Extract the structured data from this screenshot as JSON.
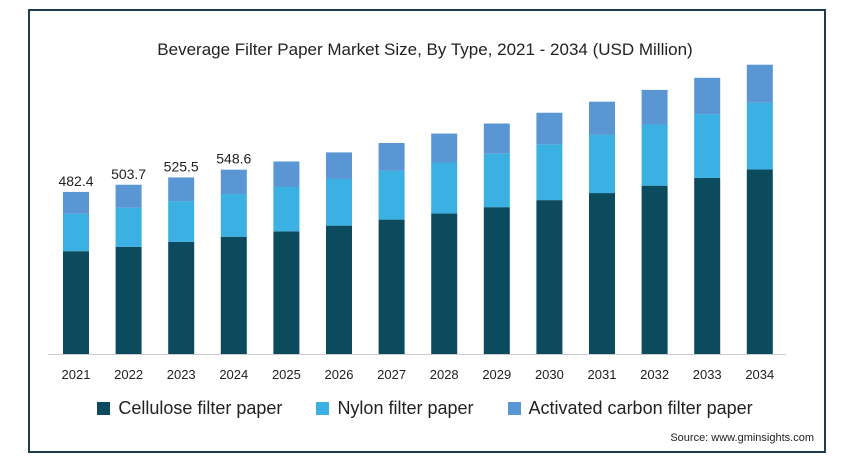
{
  "title": "Beverage Filter Paper Market Size, By Type, 2021 - 2034 (USD Million)",
  "source": "Source: www.gminsights.com",
  "colors": {
    "cellulose": "#0c4a5e",
    "nylon": "#3ab0e3",
    "activated": "#5a96d4",
    "frame": "#1d3d4f",
    "axis": "#cccccc"
  },
  "chart_data": {
    "type": "bar",
    "stacked": true,
    "categories": [
      "2021",
      "2022",
      "2023",
      "2024",
      "2025",
      "2026",
      "2027",
      "2028",
      "2029",
      "2030",
      "2031",
      "2032",
      "2033",
      "2034"
    ],
    "series": [
      {
        "name": "Cellulose filter paper",
        "values": [
          306,
          319,
          334,
          349,
          365,
          382,
          400,
          418,
          437,
          458,
          479,
          501,
          524,
          549
        ]
      },
      {
        "name": "Nylon filter paper",
        "values": [
          111,
          116,
          121,
          127,
          132,
          139,
          145,
          152,
          159,
          166,
          174,
          182,
          190,
          199
        ]
      },
      {
        "name": "Activated carbon filter paper",
        "values": [
          65.4,
          68.7,
          70.5,
          72.6,
          76,
          79,
          83,
          86,
          90,
          94,
          98,
          103,
          108,
          113
        ]
      }
    ],
    "data_labels": [
      "482.4",
      "503.7",
      "525.5",
      "548.6",
      null,
      null,
      null,
      null,
      null,
      null,
      null,
      null,
      null,
      null
    ],
    "ylim": [
      0,
      875
    ],
    "y_axis_visible": false,
    "grid": false,
    "legend_position": "bottom"
  }
}
